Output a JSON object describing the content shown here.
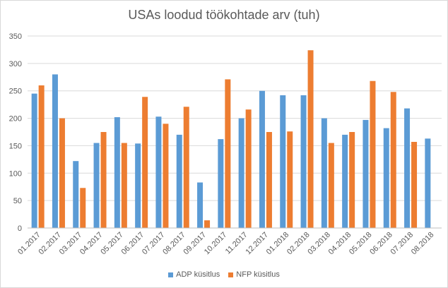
{
  "chart_data": {
    "type": "bar",
    "title": "USAs loodud töökohtade arv (tuh)",
    "xlabel": "",
    "ylabel": "",
    "ylim": [
      0,
      350
    ],
    "yticks": [
      0,
      50,
      100,
      150,
      200,
      250,
      300,
      350
    ],
    "grid": true,
    "legend_position": "bottom",
    "categories": [
      "01.2017",
      "02.2017",
      "03.2017",
      "04.2017",
      "05.2017",
      "06.2017",
      "07.2017",
      "08.2017",
      "09.2017",
      "10.2017",
      "11.2017",
      "12.2017",
      "01.2018",
      "02.2018",
      "03.2018",
      "04.2018",
      "05.2018",
      "06.2018",
      "07.2018",
      "08.2018"
    ],
    "series": [
      {
        "name": "ADP küsitlus",
        "color": "#5b9bd5",
        "values": [
          245,
          280,
          122,
          155,
          202,
          154,
          203,
          170,
          83,
          162,
          200,
          250,
          242,
          242,
          200,
          170,
          197,
          182,
          218,
          163
        ]
      },
      {
        "name": "NFP küsitlus",
        "color": "#ed7d31",
        "values": [
          260,
          200,
          73,
          175,
          155,
          239,
          190,
          221,
          14,
          271,
          216,
          175,
          176,
          324,
          155,
          175,
          268,
          248,
          157,
          null
        ]
      }
    ]
  }
}
